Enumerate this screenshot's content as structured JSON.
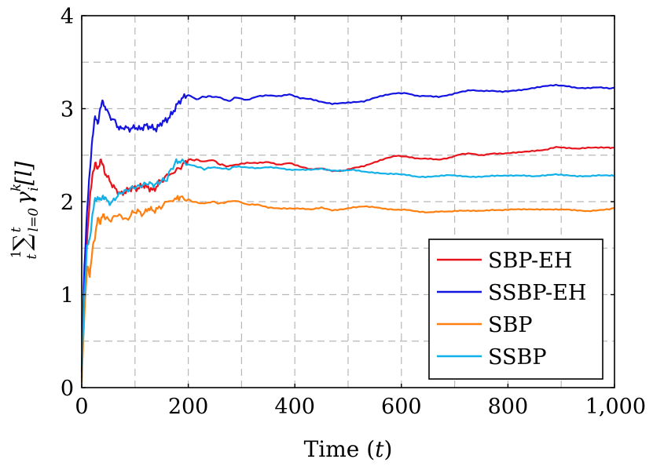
{
  "chart_data": {
    "type": "line",
    "title": "",
    "xlabel": "Time",
    "xlabel_var": "t",
    "ylabel_prefix": "1/t ∑",
    "ylabel": "γ",
    "ylabel_parts": {
      "frac_num": "1",
      "frac_den": "t",
      "sum": "∑",
      "sub_lower": "l=0",
      "sup_upper": "t",
      "gamma": "γ",
      "gamma_sup": "k",
      "gamma_sub": "i",
      "index": "[l]"
    },
    "xlim": [
      0,
      1000
    ],
    "ylim": [
      0,
      4
    ],
    "x_ticks": [
      0,
      200,
      400,
      600,
      800,
      1000
    ],
    "x_tick_labels": [
      "0",
      "200",
      "400",
      "600",
      "800",
      "1,000"
    ],
    "y_ticks": [
      0,
      1,
      2,
      3,
      4
    ],
    "y_tick_labels": [
      "0",
      "1",
      "2",
      "3",
      "4"
    ],
    "grid": true,
    "legend_position": "bottom-right",
    "series": [
      {
        "name": "SBP-EH",
        "color": "#e8141c",
        "points": [
          [
            0,
            0.1
          ],
          [
            5,
            1.2
          ],
          [
            10,
            1.6
          ],
          [
            15,
            2.0
          ],
          [
            20,
            2.3
          ],
          [
            25,
            2.4
          ],
          [
            30,
            2.35
          ],
          [
            35,
            2.45
          ],
          [
            40,
            2.38
          ],
          [
            45,
            2.3
          ],
          [
            55,
            2.2
          ],
          [
            65,
            2.12
          ],
          [
            75,
            2.08
          ],
          [
            85,
            2.12
          ],
          [
            95,
            2.15
          ],
          [
            105,
            2.14
          ],
          [
            115,
            2.18
          ],
          [
            125,
            2.15
          ],
          [
            135,
            2.12
          ],
          [
            145,
            2.2
          ],
          [
            160,
            2.28
          ],
          [
            175,
            2.32
          ],
          [
            190,
            2.4
          ],
          [
            200,
            2.45
          ],
          [
            215,
            2.45
          ],
          [
            230,
            2.43
          ],
          [
            245,
            2.45
          ],
          [
            260,
            2.4
          ],
          [
            275,
            2.38
          ],
          [
            290,
            2.4
          ],
          [
            310,
            2.42
          ],
          [
            330,
            2.42
          ],
          [
            350,
            2.43
          ],
          [
            370,
            2.4
          ],
          [
            390,
            2.42
          ],
          [
            410,
            2.38
          ],
          [
            430,
            2.35
          ],
          [
            450,
            2.36
          ],
          [
            470,
            2.33
          ],
          [
            490,
            2.33
          ],
          [
            510,
            2.36
          ],
          [
            530,
            2.38
          ],
          [
            550,
            2.42
          ],
          [
            570,
            2.46
          ],
          [
            590,
            2.49
          ],
          [
            610,
            2.48
          ],
          [
            630,
            2.46
          ],
          [
            650,
            2.46
          ],
          [
            670,
            2.45
          ],
          [
            690,
            2.47
          ],
          [
            710,
            2.51
          ],
          [
            730,
            2.52
          ],
          [
            750,
            2.5
          ],
          [
            770,
            2.52
          ],
          [
            790,
            2.52
          ],
          [
            810,
            2.53
          ],
          [
            830,
            2.54
          ],
          [
            850,
            2.55
          ],
          [
            870,
            2.56
          ],
          [
            890,
            2.59
          ],
          [
            910,
            2.58
          ],
          [
            930,
            2.57
          ],
          [
            950,
            2.58
          ],
          [
            970,
            2.58
          ],
          [
            990,
            2.58
          ],
          [
            1000,
            2.58
          ]
        ]
      },
      {
        "name": "SSBP-EH",
        "color": "#1414e0",
        "points": [
          [
            0,
            0.15
          ],
          [
            5,
            1.3
          ],
          [
            10,
            1.9
          ],
          [
            15,
            2.3
          ],
          [
            20,
            2.7
          ],
          [
            25,
            2.9
          ],
          [
            30,
            2.85
          ],
          [
            35,
            3.0
          ],
          [
            40,
            3.08
          ],
          [
            45,
            3.0
          ],
          [
            55,
            2.9
          ],
          [
            65,
            2.85
          ],
          [
            70,
            2.78
          ],
          [
            80,
            2.8
          ],
          [
            90,
            2.78
          ],
          [
            100,
            2.8
          ],
          [
            110,
            2.78
          ],
          [
            120,
            2.82
          ],
          [
            130,
            2.8
          ],
          [
            140,
            2.78
          ],
          [
            150,
            2.85
          ],
          [
            160,
            2.88
          ],
          [
            170,
            2.95
          ],
          [
            180,
            3.05
          ],
          [
            190,
            3.12
          ],
          [
            200,
            3.15
          ],
          [
            215,
            3.1
          ],
          [
            230,
            3.13
          ],
          [
            245,
            3.13
          ],
          [
            260,
            3.12
          ],
          [
            275,
            3.08
          ],
          [
            290,
            3.12
          ],
          [
            310,
            3.09
          ],
          [
            330,
            3.13
          ],
          [
            350,
            3.14
          ],
          [
            370,
            3.13
          ],
          [
            390,
            3.15
          ],
          [
            410,
            3.11
          ],
          [
            430,
            3.1
          ],
          [
            450,
            3.07
          ],
          [
            470,
            3.05
          ],
          [
            490,
            3.06
          ],
          [
            510,
            3.07
          ],
          [
            530,
            3.08
          ],
          [
            550,
            3.12
          ],
          [
            570,
            3.15
          ],
          [
            590,
            3.17
          ],
          [
            610,
            3.17
          ],
          [
            630,
            3.14
          ],
          [
            650,
            3.14
          ],
          [
            670,
            3.13
          ],
          [
            690,
            3.15
          ],
          [
            710,
            3.18
          ],
          [
            730,
            3.2
          ],
          [
            750,
            3.19
          ],
          [
            770,
            3.19
          ],
          [
            790,
            3.18
          ],
          [
            810,
            3.19
          ],
          [
            830,
            3.2
          ],
          [
            850,
            3.22
          ],
          [
            870,
            3.24
          ],
          [
            890,
            3.25
          ],
          [
            910,
            3.24
          ],
          [
            930,
            3.22
          ],
          [
            950,
            3.22
          ],
          [
            970,
            3.23
          ],
          [
            990,
            3.22
          ],
          [
            1000,
            3.22
          ]
        ]
      },
      {
        "name": "SBP",
        "color": "#ff8010",
        "points": [
          [
            0,
            0.05
          ],
          [
            5,
            0.8
          ],
          [
            10,
            1.3
          ],
          [
            15,
            1.2
          ],
          [
            20,
            1.5
          ],
          [
            25,
            1.6
          ],
          [
            30,
            1.85
          ],
          [
            35,
            1.75
          ],
          [
            40,
            1.88
          ],
          [
            45,
            1.82
          ],
          [
            55,
            1.8
          ],
          [
            65,
            1.86
          ],
          [
            75,
            1.84
          ],
          [
            85,
            1.8
          ],
          [
            95,
            1.88
          ],
          [
            105,
            1.9
          ],
          [
            115,
            1.86
          ],
          [
            125,
            1.93
          ],
          [
            135,
            1.9
          ],
          [
            145,
            1.93
          ],
          [
            160,
            2.0
          ],
          [
            175,
            2.02
          ],
          [
            185,
            2.05
          ],
          [
            200,
            2.02
          ],
          [
            215,
            1.99
          ],
          [
            230,
            1.98
          ],
          [
            245,
            2.0
          ],
          [
            260,
            1.98
          ],
          [
            275,
            2.0
          ],
          [
            290,
            2.01
          ],
          [
            310,
            1.97
          ],
          [
            330,
            1.97
          ],
          [
            350,
            1.94
          ],
          [
            370,
            1.93
          ],
          [
            390,
            1.93
          ],
          [
            410,
            1.93
          ],
          [
            430,
            1.92
          ],
          [
            450,
            1.94
          ],
          [
            470,
            1.91
          ],
          [
            490,
            1.92
          ],
          [
            510,
            1.94
          ],
          [
            530,
            1.95
          ],
          [
            550,
            1.94
          ],
          [
            570,
            1.92
          ],
          [
            590,
            1.91
          ],
          [
            610,
            1.91
          ],
          [
            630,
            1.89
          ],
          [
            650,
            1.88
          ],
          [
            670,
            1.89
          ],
          [
            690,
            1.89
          ],
          [
            710,
            1.9
          ],
          [
            730,
            1.9
          ],
          [
            750,
            1.9
          ],
          [
            770,
            1.91
          ],
          [
            790,
            1.91
          ],
          [
            810,
            1.92
          ],
          [
            830,
            1.92
          ],
          [
            850,
            1.92
          ],
          [
            870,
            1.92
          ],
          [
            890,
            1.92
          ],
          [
            910,
            1.92
          ],
          [
            930,
            1.91
          ],
          [
            950,
            1.9
          ],
          [
            970,
            1.91
          ],
          [
            990,
            1.92
          ],
          [
            1000,
            1.93
          ]
        ]
      },
      {
        "name": "SSBP",
        "color": "#10b0e8",
        "points": [
          [
            0,
            0.2
          ],
          [
            5,
            1.0
          ],
          [
            10,
            1.5
          ],
          [
            15,
            1.6
          ],
          [
            20,
            1.85
          ],
          [
            25,
            2.02
          ],
          [
            30,
            2.05
          ],
          [
            35,
            2.0
          ],
          [
            40,
            2.07
          ],
          [
            45,
            2.02
          ],
          [
            55,
            1.98
          ],
          [
            65,
            2.05
          ],
          [
            75,
            2.1
          ],
          [
            85,
            2.12
          ],
          [
            95,
            2.15
          ],
          [
            105,
            2.16
          ],
          [
            115,
            2.18
          ],
          [
            125,
            2.2
          ],
          [
            135,
            2.18
          ],
          [
            145,
            2.2
          ],
          [
            160,
            2.25
          ],
          [
            175,
            2.42
          ],
          [
            185,
            2.44
          ],
          [
            200,
            2.4
          ],
          [
            215,
            2.38
          ],
          [
            230,
            2.35
          ],
          [
            245,
            2.37
          ],
          [
            260,
            2.36
          ],
          [
            275,
            2.35
          ],
          [
            290,
            2.38
          ],
          [
            310,
            2.37
          ],
          [
            330,
            2.36
          ],
          [
            350,
            2.37
          ],
          [
            370,
            2.36
          ],
          [
            390,
            2.34
          ],
          [
            410,
            2.34
          ],
          [
            430,
            2.34
          ],
          [
            450,
            2.35
          ],
          [
            470,
            2.33
          ],
          [
            490,
            2.33
          ],
          [
            510,
            2.34
          ],
          [
            530,
            2.32
          ],
          [
            550,
            2.31
          ],
          [
            570,
            2.3
          ],
          [
            590,
            2.3
          ],
          [
            610,
            2.29
          ],
          [
            630,
            2.27
          ],
          [
            650,
            2.27
          ],
          [
            670,
            2.28
          ],
          [
            690,
            2.29
          ],
          [
            710,
            2.28
          ],
          [
            730,
            2.27
          ],
          [
            750,
            2.27
          ],
          [
            770,
            2.28
          ],
          [
            790,
            2.28
          ],
          [
            810,
            2.28
          ],
          [
            830,
            2.28
          ],
          [
            850,
            2.27
          ],
          [
            870,
            2.28
          ],
          [
            890,
            2.29
          ],
          [
            910,
            2.28
          ],
          [
            930,
            2.27
          ],
          [
            950,
            2.27
          ],
          [
            970,
            2.28
          ],
          [
            990,
            2.28
          ],
          [
            1000,
            2.28
          ]
        ]
      }
    ]
  }
}
